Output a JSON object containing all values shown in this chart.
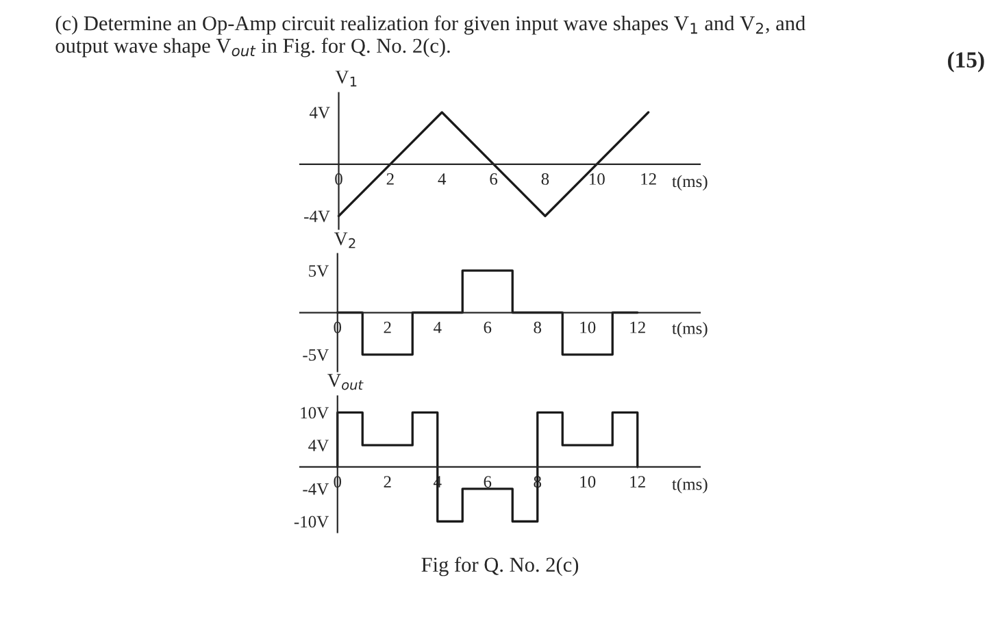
{
  "chart_data": [
    {
      "type": "line",
      "title": "(c) Determine an Op-Amp circuit realization for given input wave shapes V$_{1}$ and V$_{2}$, and output wave shape V$_{out}$ in Fig. for Q. No. 2(c).",
      "annotations": [
        "(15)"
      ],
      "ylabel": "V$_{1}$",
      "xlabel": "t(ms)",
      "x": [
        0,
        4,
        8,
        12
      ],
      "series": [
        {
          "color": "#1a1a1a",
          "values": [
            -4,
            4,
            -4,
            4
          ]
        }
      ],
      "xlim": [
        -1.5,
        14
      ],
      "ylim": [
        -5,
        5.5
      ],
      "xticks": [
        0,
        2,
        4,
        6,
        8,
        10,
        12
      ],
      "yticks": [
        {
          "value": 4,
          "label": "4V"
        },
        {
          "value": -4,
          "label": "-4V"
        }
      ],
      "grid": false
    },
    {
      "type": "line",
      "ylabel": "V$_{2}$",
      "xlabel": "t(ms)",
      "x": [
        0,
        1,
        1,
        3,
        3,
        5,
        5,
        7,
        7,
        9,
        9,
        11,
        11,
        12
      ],
      "series": [
        {
          "color": "#1a1a1a",
          "values": [
            0,
            0,
            -5,
            -5,
            0,
            0,
            5,
            5,
            0,
            0,
            -5,
            -5,
            0,
            0
          ]
        }
      ],
      "xlim": [
        -1.5,
        14.5
      ],
      "ylim": [
        -7,
        7
      ],
      "xticks": [
        0,
        2,
        4,
        6,
        8,
        10,
        12
      ],
      "yticks": [
        {
          "value": 5,
          "label": "5V"
        },
        {
          "value": -5,
          "label": "-5V"
        }
      ],
      "grid": false
    },
    {
      "type": "line",
      "ylabel": "V$_{out}$",
      "xlabel": "t(ms)",
      "annotations": [
        "Fig for Q. No. 2(c)"
      ],
      "x": [
        0,
        0,
        1,
        1,
        3,
        3,
        4,
        4,
        5,
        5,
        7,
        7,
        8,
        8,
        9,
        9,
        11,
        11,
        12,
        12
      ],
      "series": [
        {
          "color": "#1a1a1a",
          "values": [
            0,
            10,
            10,
            4,
            4,
            10,
            10,
            -10,
            -10,
            -4,
            -4,
            -10,
            -10,
            10,
            10,
            4,
            4,
            10,
            10,
            0
          ]
        }
      ],
      "xlim": [
        -1.5,
        14.5
      ],
      "ylim": [
        -12,
        13
      ],
      "xticks": [
        0,
        2,
        4,
        6,
        8,
        10,
        12
      ],
      "yticks": [
        {
          "value": 10,
          "label": "10V"
        },
        {
          "value": 4,
          "label": "4V"
        },
        {
          "value": -4,
          "label": "-4V"
        },
        {
          "value": -10,
          "label": "-10V"
        }
      ],
      "grid": false
    }
  ]
}
